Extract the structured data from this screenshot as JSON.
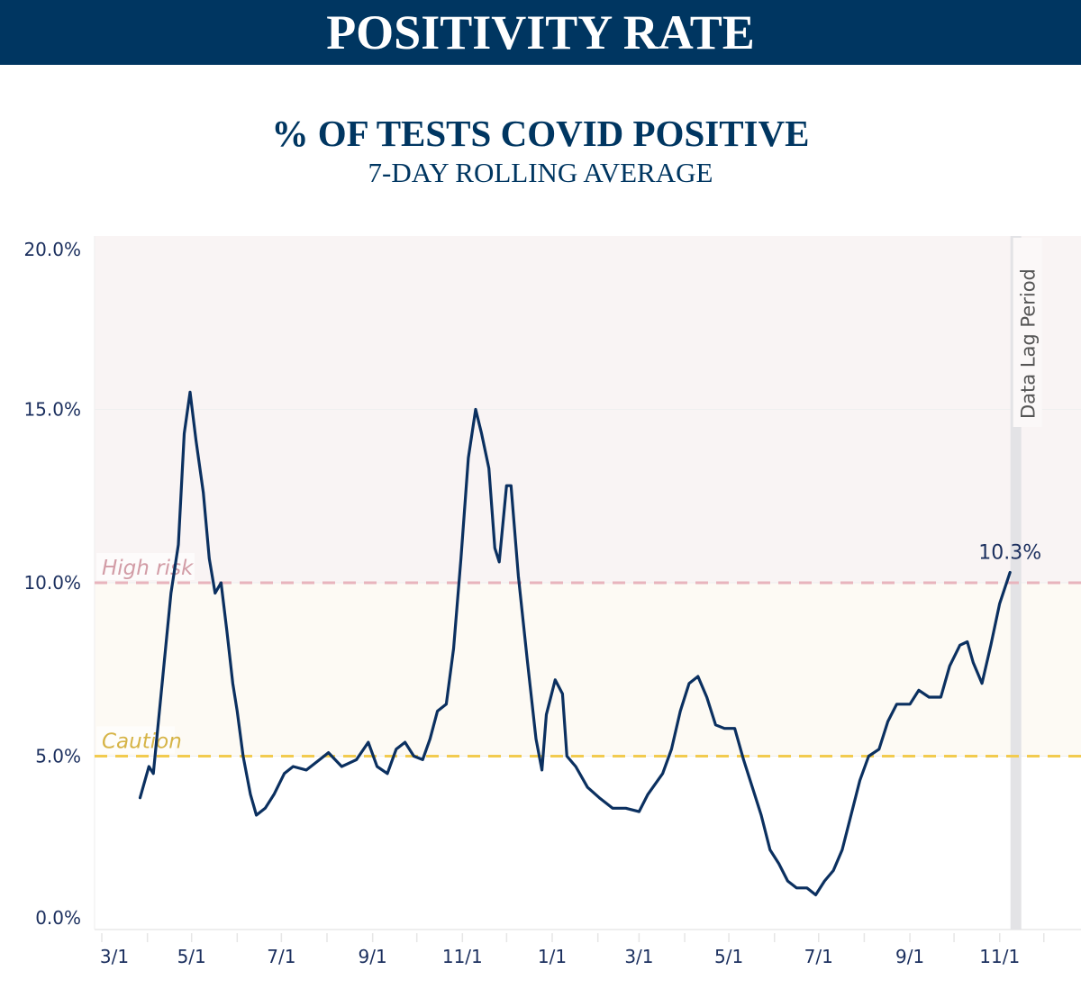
{
  "header": {
    "title": "POSITIVITY RATE"
  },
  "chart_data": {
    "type": "line",
    "title": "% OF TESTS COVID POSITIVE",
    "subtitle": "7-DAY ROLLING AVERAGE",
    "xlabel": "",
    "ylabel": "",
    "ylim": [
      0,
      20
    ],
    "xlim": [
      "2020-02-21",
      "2021-12-31"
    ],
    "y_ticks": [
      {
        "value": 0,
        "label": "0.0%"
      },
      {
        "value": 5,
        "label": "5.0%"
      },
      {
        "value": 10,
        "label": "10.0%"
      },
      {
        "value": 15,
        "label": "15.0%"
      },
      {
        "value": 20,
        "label": "20.0%"
      }
    ],
    "x_ticks": [
      {
        "date": "2020-03-01",
        "label": "3/1"
      },
      {
        "date": "2020-05-01",
        "label": "5/1"
      },
      {
        "date": "2020-07-01",
        "label": "7/1"
      },
      {
        "date": "2020-09-01",
        "label": "9/1"
      },
      {
        "date": "2020-11-01",
        "label": "11/1"
      },
      {
        "date": "2021-01-01",
        "label": "1/1"
      },
      {
        "date": "2021-03-01",
        "label": "3/1"
      },
      {
        "date": "2021-05-01",
        "label": "5/1"
      },
      {
        "date": "2021-07-01",
        "label": "7/1"
      },
      {
        "date": "2021-09-01",
        "label": "9/1"
      },
      {
        "date": "2021-11-01",
        "label": "11/1"
      }
    ],
    "grid": true,
    "thresholds": [
      {
        "label": "High risk",
        "value": 10,
        "color": "#e8b4bd",
        "band_color": "#f9f4f4"
      },
      {
        "label": "Caution",
        "value": 5,
        "color": "#f2cb4f",
        "band_color": "#fdfaf4"
      }
    ],
    "annotation": {
      "label": "10.3%",
      "date": "2021-11-08",
      "value": 10.3
    },
    "data_lag": {
      "label": "Data Lag Period",
      "date": "2021-11-12",
      "color": "#e3e3e6"
    },
    "line_color": "#0b3060",
    "series": [
      {
        "x": [
          "2020-03-27",
          "2020-04-02",
          "2020-04-05",
          "2020-04-11",
          "2020-04-17",
          "2020-04-22",
          "2020-04-26",
          "2020-04-30",
          "2020-05-04",
          "2020-05-09",
          "2020-05-13",
          "2020-05-17",
          "2020-05-21",
          "2020-05-25",
          "2020-05-29",
          "2020-06-01",
          "2020-06-05",
          "2020-06-10",
          "2020-06-14",
          "2020-06-20",
          "2020-06-26",
          "2020-07-03",
          "2020-07-09",
          "2020-07-18",
          "2020-07-27",
          "2020-08-02",
          "2020-08-11",
          "2020-08-21",
          "2020-08-29",
          "2020-09-04",
          "2020-09-11",
          "2020-09-17",
          "2020-09-23",
          "2020-09-29",
          "2020-10-05",
          "2020-10-10",
          "2020-10-15",
          "2020-10-21",
          "2020-10-26",
          "2020-10-31",
          "2020-11-05",
          "2020-11-10",
          "2020-11-14",
          "2020-11-19",
          "2020-11-23",
          "2020-11-26",
          "2020-12-01",
          "2020-12-04",
          "2020-12-09",
          "2020-12-15",
          "2020-12-21",
          "2020-12-25",
          "2020-12-28",
          "2021-01-03",
          "2021-01-08",
          "2021-01-11",
          "2021-01-17",
          "2021-01-25",
          "2021-02-02",
          "2021-02-11",
          "2021-02-20",
          "2021-03-01",
          "2021-03-07",
          "2021-03-17",
          "2021-03-23",
          "2021-03-29",
          "2021-04-04",
          "2021-04-10",
          "2021-04-16",
          "2021-04-22",
          "2021-04-28",
          "2021-05-05",
          "2021-05-11",
          "2021-05-17",
          "2021-05-23",
          "2021-05-29",
          "2021-06-04",
          "2021-06-10",
          "2021-06-16",
          "2021-06-23",
          "2021-06-29",
          "2021-07-05",
          "2021-07-11",
          "2021-07-17",
          "2021-07-23",
          "2021-07-29",
          "2021-08-04",
          "2021-08-11",
          "2021-08-17",
          "2021-08-23",
          "2021-09-01",
          "2021-09-07",
          "2021-09-14",
          "2021-09-22",
          "2021-09-28",
          "2021-10-05",
          "2021-10-10",
          "2021-10-14",
          "2021-10-20",
          "2021-10-26",
          "2021-11-01",
          "2021-11-08"
        ],
        "y": [
          3.8,
          4.7,
          4.5,
          7.1,
          9.7,
          11.1,
          14.3,
          15.5,
          14.1,
          12.6,
          10.7,
          9.7,
          10.0,
          8.6,
          7.1,
          6.3,
          5.0,
          3.9,
          3.3,
          3.5,
          3.9,
          4.5,
          4.7,
          4.6,
          4.9,
          5.1,
          4.7,
          4.9,
          5.4,
          4.7,
          4.5,
          5.2,
          5.4,
          5.0,
          4.9,
          5.5,
          6.3,
          6.5,
          8.1,
          10.7,
          13.6,
          15.0,
          14.3,
          13.3,
          11.0,
          10.6,
          12.8,
          12.8,
          10.2,
          7.8,
          5.5,
          4.6,
          6.2,
          7.2,
          6.8,
          5.0,
          4.7,
          4.1,
          3.8,
          3.5,
          3.5,
          3.4,
          3.9,
          4.5,
          5.2,
          6.3,
          7.1,
          7.3,
          6.7,
          5.9,
          5.8,
          5.8,
          4.9,
          4.1,
          3.3,
          2.3,
          1.9,
          1.4,
          1.2,
          1.2,
          1.0,
          1.4,
          1.7,
          2.3,
          3.3,
          4.3,
          5.0,
          5.2,
          6.0,
          6.5,
          6.5,
          6.9,
          6.7,
          6.7,
          7.6,
          8.2,
          8.3,
          7.7,
          7.1,
          8.2,
          9.4,
          10.3
        ]
      }
    ]
  }
}
